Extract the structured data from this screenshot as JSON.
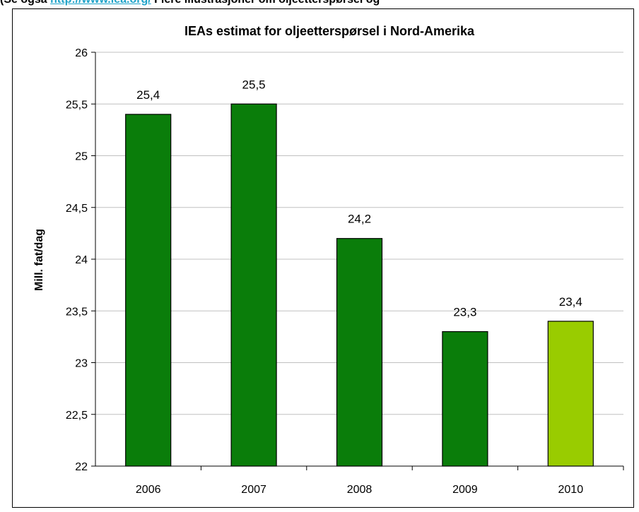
{
  "top_note": {
    "prefix": "(Se også",
    "link": "http://www.iea.org/",
    "suffix": "Flere illustrasjoner om oljeetterspørsel og"
  },
  "chart_data": {
    "type": "bar",
    "title": "IEAs estimat for oljeetterspørsel i Nord-Amerika",
    "xlabel": "",
    "ylabel": "Mill. fat/dag",
    "categories": [
      "2006",
      "2007",
      "2008",
      "2009",
      "2010"
    ],
    "values": [
      25.4,
      25.5,
      24.2,
      23.3,
      23.4
    ],
    "data_labels": [
      "25,4",
      "25,5",
      "24,2",
      "23,3",
      "23,4"
    ],
    "ylim": [
      22,
      26
    ],
    "yticks": [
      22,
      22.5,
      23,
      23.5,
      24,
      24.5,
      25,
      25.5,
      26
    ],
    "ytick_labels": [
      "22",
      "22,5",
      "23",
      "23,5",
      "24",
      "24,5",
      "25",
      "25,5",
      "26"
    ],
    "grid": true,
    "colors": {
      "bar": "#0a7d0a",
      "bar_highlight": "#99cc00",
      "grid": "#c0c0c0",
      "axis": "#000000"
    },
    "highlight_index": 4
  }
}
